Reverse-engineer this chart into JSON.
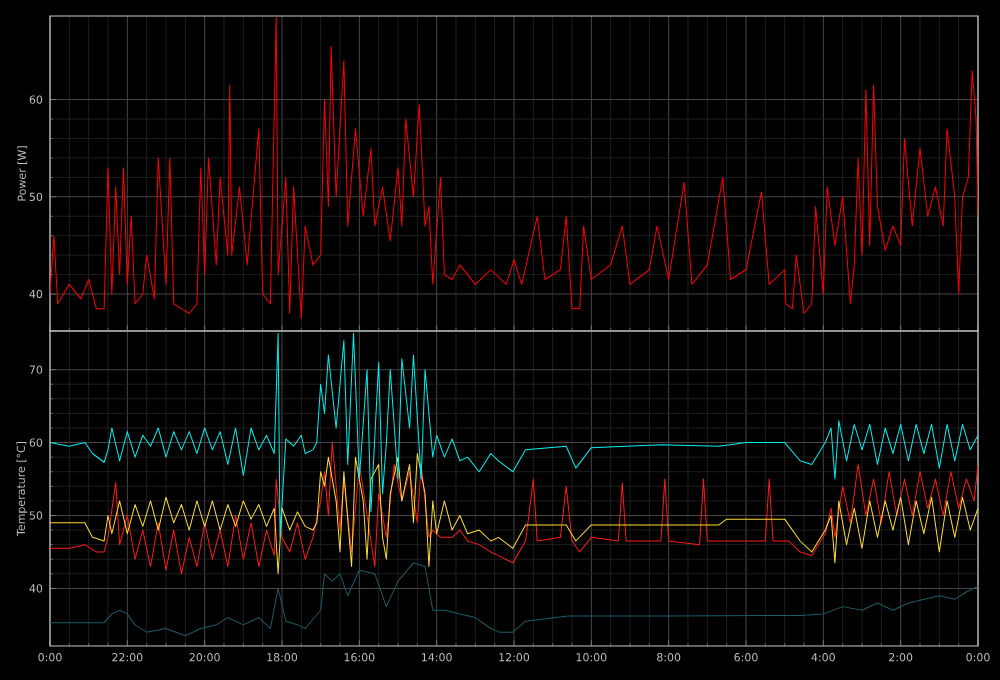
{
  "chart_data": [
    {
      "type": "line",
      "ylabel": "Power [W]",
      "xlim": [
        24,
        0
      ],
      "ylim": [
        36.2,
        68.6
      ],
      "yticks": [
        40,
        50,
        60
      ],
      "grid": true,
      "tick_labels": "y",
      "xticks": [
        {
          "value": 24,
          "label": null
        },
        {
          "value": 22,
          "label": null
        },
        {
          "value": 20,
          "label": null
        },
        {
          "value": 18,
          "label": null
        },
        {
          "value": 16,
          "label": null
        },
        {
          "value": 14,
          "label": null
        },
        {
          "value": 12,
          "label": null
        },
        {
          "value": 10,
          "label": null
        },
        {
          "value": 8,
          "label": null
        },
        {
          "value": 6,
          "label": null
        },
        {
          "value": 4,
          "label": null
        },
        {
          "value": 2,
          "label": null
        },
        {
          "value": 0,
          "label": null
        }
      ],
      "series": [
        {
          "color": "#ff0000",
          "x": [
            24.0,
            23.9,
            23.8,
            23.5,
            23.2,
            23.0,
            22.8,
            22.6,
            22.5,
            22.4,
            22.3,
            22.2,
            22.1,
            22.0,
            21.9,
            21.8,
            21.6,
            21.5,
            21.3,
            21.2,
            21.0,
            20.9,
            20.8,
            20.6,
            20.4,
            20.2,
            20.1,
            20.0,
            19.9,
            19.7,
            19.6,
            19.4,
            19.35,
            19.3,
            19.1,
            18.9,
            18.6,
            18.5,
            18.3,
            18.15,
            18.1,
            17.9,
            17.8,
            17.7,
            17.5,
            17.4,
            17.2,
            17.0,
            16.9,
            16.8,
            16.73,
            16.6,
            16.4,
            16.3,
            16.1,
            15.9,
            15.7,
            15.6,
            15.4,
            15.2,
            15.0,
            14.9,
            14.8,
            14.6,
            14.45,
            14.3,
            14.2,
            14.1,
            13.9,
            13.8,
            13.6,
            13.4,
            13.0,
            12.6,
            12.2,
            12.0,
            11.8,
            11.4,
            11.2,
            10.8,
            10.65,
            10.5,
            10.3,
            10.2,
            10.0,
            9.5,
            9.2,
            9.0,
            8.5,
            8.3,
            8.0,
            7.6,
            7.4,
            7.0,
            6.6,
            6.4,
            6.0,
            5.6,
            5.4,
            5.0,
            4.97,
            4.8,
            4.7,
            4.5,
            4.3,
            4.2,
            4.0,
            3.9,
            3.7,
            3.5,
            3.3,
            3.2,
            3.1,
            3.0,
            2.9,
            2.8,
            2.7,
            2.6,
            2.4,
            2.2,
            2.0,
            1.9,
            1.7,
            1.5,
            1.3,
            1.1,
            0.9,
            0.8,
            0.6,
            0.5,
            0.4,
            0.25,
            0.15,
            0.05,
            0.0
          ],
          "values": [
            40,
            46,
            39,
            41,
            39.5,
            41.5,
            38.5,
            38.5,
            53,
            40,
            51,
            42,
            53,
            41,
            48,
            39,
            40,
            44,
            39.5,
            54,
            41,
            54,
            39,
            38.5,
            38,
            39,
            53,
            42,
            54,
            43,
            52,
            44,
            61.5,
            44,
            51,
            43,
            57,
            40,
            39,
            68.5,
            42,
            52,
            38,
            51,
            37.5,
            47,
            43,
            44,
            60,
            49,
            65.5,
            50,
            64,
            47,
            57,
            48,
            55,
            47,
            51,
            45.5,
            53,
            47,
            58,
            50,
            59.5,
            47,
            49,
            41,
            52,
            42,
            41.5,
            43,
            41,
            42.5,
            41,
            43.5,
            41,
            48,
            41.5,
            42.5,
            48,
            38.5,
            38.5,
            47,
            41.5,
            43,
            47,
            41,
            42.5,
            47,
            41.5,
            51.5,
            41,
            43,
            52,
            41.5,
            42.5,
            50.5,
            41,
            42.5,
            39,
            38.5,
            44,
            38,
            39,
            49,
            40,
            51,
            45,
            50,
            39,
            43,
            54,
            44,
            61,
            45,
            61.5,
            49,
            44.5,
            47,
            45,
            56,
            47,
            55,
            48,
            51,
            47,
            57,
            50,
            40,
            50,
            52,
            63,
            58,
            48
          ]
        }
      ]
    },
    {
      "type": "line",
      "ylabel": "Temperature [°C]",
      "xlim": [
        24,
        0
      ],
      "ylim": [
        32.1,
        75.3
      ],
      "yticks": [
        40,
        50,
        60,
        70
      ],
      "grid": true,
      "xticks": [
        {
          "value": 24,
          "label": "0:00"
        },
        {
          "value": 22,
          "label": "22:00"
        },
        {
          "value": 20,
          "label": "20:00"
        },
        {
          "value": 18,
          "label": "18:00"
        },
        {
          "value": 16,
          "label": "16:00"
        },
        {
          "value": 14,
          "label": "14:00"
        },
        {
          "value": 12,
          "label": "12:00"
        },
        {
          "value": 10,
          "label": "10:00"
        },
        {
          "value": 8,
          "label": "8:00"
        },
        {
          "value": 6,
          "label": "6:00"
        },
        {
          "value": 4,
          "label": "4:00"
        },
        {
          "value": 2,
          "label": "2:00"
        },
        {
          "value": 0,
          "label": "0:00"
        }
      ],
      "series": [
        {
          "color": "#ff1a1a",
          "x": [
            24.0,
            23.5,
            23.1,
            22.8,
            22.6,
            22.5,
            22.3,
            22.2,
            22.0,
            21.8,
            21.6,
            21.4,
            21.2,
            21.0,
            20.8,
            20.6,
            20.4,
            20.2,
            20.0,
            19.8,
            19.6,
            19.4,
            19.2,
            19.0,
            18.8,
            18.6,
            18.4,
            18.2,
            18.15,
            18.0,
            17.8,
            17.6,
            17.4,
            17.2,
            17.0,
            16.9,
            16.8,
            16.7,
            16.5,
            16.4,
            16.2,
            16.0,
            15.8,
            15.6,
            15.5,
            15.3,
            15.1,
            14.9,
            14.7,
            14.5,
            14.4,
            14.2,
            14.1,
            13.9,
            13.6,
            13.4,
            13.2,
            12.9,
            12.6,
            12.4,
            12.03,
            11.7,
            11.5,
            11.4,
            10.8,
            10.65,
            10.5,
            10.3,
            10.0,
            9.3,
            9.2,
            9.1,
            8.2,
            8.1,
            8.0,
            7.2,
            7.1,
            7.0,
            5.5,
            5.4,
            5.3,
            4.9,
            4.6,
            4.3,
            3.95,
            3.8,
            3.7,
            3.5,
            3.3,
            3.1,
            2.9,
            2.7,
            2.5,
            2.3,
            2.1,
            1.9,
            1.7,
            1.5,
            1.3,
            1.1,
            0.9,
            0.7,
            0.5,
            0.3,
            0.1,
            0.0
          ],
          "values": [
            45.5,
            45.5,
            46,
            45,
            45,
            47,
            54.5,
            46,
            50,
            44,
            48,
            43,
            49,
            42.5,
            48,
            42,
            47,
            43,
            49,
            44,
            48,
            43,
            50,
            44,
            49,
            43,
            48,
            44.5,
            55,
            47,
            45,
            49,
            44,
            47,
            52,
            56,
            50,
            60,
            48,
            55,
            45,
            57,
            50,
            43,
            53,
            47,
            57,
            52,
            56,
            49,
            57,
            47,
            48,
            47,
            47,
            48,
            46.5,
            46,
            45,
            44.5,
            43.5,
            46.5,
            55,
            46.5,
            47,
            54,
            46.5,
            45,
            47,
            46.5,
            54.5,
            46.5,
            46.5,
            55,
            46.5,
            46,
            55,
            46.5,
            46.5,
            55,
            46.5,
            46.5,
            45,
            44.5,
            47.5,
            51,
            47,
            54,
            49,
            57,
            50,
            55,
            49,
            56,
            50,
            55,
            50,
            56,
            51,
            55,
            50,
            56,
            51,
            55,
            52,
            57
          ]
        },
        {
          "color": "#ffdd33",
          "x": [
            24.0,
            23.1,
            22.9,
            22.6,
            22.5,
            22.4,
            22.2,
            22.0,
            21.8,
            21.6,
            21.4,
            21.2,
            21.0,
            20.8,
            20.6,
            20.4,
            20.2,
            20.0,
            19.8,
            19.6,
            19.4,
            19.2,
            19.0,
            18.8,
            18.6,
            18.4,
            18.2,
            18.1,
            18.0,
            17.8,
            17.6,
            17.4,
            17.2,
            17.1,
            17.0,
            16.9,
            16.8,
            16.6,
            16.5,
            16.4,
            16.2,
            16.1,
            15.9,
            15.8,
            15.7,
            15.5,
            15.4,
            15.3,
            15.2,
            15.0,
            14.9,
            14.7,
            14.6,
            14.5,
            14.3,
            14.2,
            14.1,
            14.0,
            13.8,
            13.6,
            13.4,
            13.2,
            12.9,
            12.6,
            12.4,
            12.03,
            11.7,
            10.65,
            10.4,
            10.0,
            6.7,
            6.5,
            5.0,
            4.6,
            4.3,
            3.95,
            3.8,
            3.7,
            3.6,
            3.4,
            3.2,
            3.0,
            2.8,
            2.6,
            2.4,
            2.2,
            2.0,
            1.8,
            1.6,
            1.4,
            1.2,
            1.0,
            0.8,
            0.6,
            0.4,
            0.2,
            0.0
          ],
          "values": [
            49,
            49,
            47,
            46.5,
            50,
            47.5,
            52,
            47.5,
            51.5,
            48.5,
            52,
            48,
            52.5,
            49,
            51.5,
            48,
            52,
            48.5,
            52,
            48,
            51.5,
            48.5,
            52,
            49.5,
            51.5,
            48.5,
            51,
            42,
            51,
            48,
            50.5,
            48.5,
            48,
            49,
            56,
            54,
            58,
            52,
            45,
            56,
            43,
            58,
            52,
            44,
            55,
            57,
            47,
            44,
            53,
            58,
            52,
            57,
            49,
            58.5,
            53,
            43,
            52,
            47.5,
            52,
            48,
            50,
            47.5,
            48,
            46.5,
            47,
            45.5,
            48.7,
            48.7,
            46.5,
            48.7,
            48.7,
            49.5,
            49.5,
            46.5,
            45,
            48,
            50,
            43.5,
            52,
            46,
            51,
            45.5,
            52,
            47,
            52,
            48,
            52.5,
            46,
            52,
            47.5,
            52.5,
            45,
            52,
            47,
            52.5,
            48,
            51
          ]
        },
        {
          "color": "#00f0f0",
          "x": [
            24.0,
            23.5,
            23.1,
            22.9,
            22.6,
            22.5,
            22.4,
            22.2,
            22.0,
            21.8,
            21.6,
            21.4,
            21.2,
            21.0,
            20.8,
            20.6,
            20.4,
            20.2,
            20.0,
            19.8,
            19.6,
            19.4,
            19.2,
            19.0,
            18.8,
            18.6,
            18.4,
            18.2,
            18.1,
            18.05,
            17.9,
            17.7,
            17.5,
            17.4,
            17.2,
            17.1,
            17.0,
            16.9,
            16.8,
            16.6,
            16.4,
            16.3,
            16.15,
            16.0,
            15.8,
            15.7,
            15.5,
            15.4,
            15.3,
            15.2,
            15.0,
            14.9,
            14.7,
            14.6,
            14.4,
            14.3,
            14.1,
            14.0,
            13.8,
            13.6,
            13.4,
            13.2,
            12.9,
            12.6,
            12.4,
            12.03,
            11.7,
            10.65,
            10.4,
            10.0,
            8.2,
            6.7,
            6.0,
            5.0,
            4.6,
            4.3,
            3.95,
            3.8,
            3.7,
            3.6,
            3.4,
            3.2,
            3.0,
            2.8,
            2.6,
            2.4,
            2.2,
            2.0,
            1.8,
            1.6,
            1.4,
            1.2,
            1.0,
            0.8,
            0.6,
            0.4,
            0.2,
            0.0
          ],
          "values": [
            60,
            59.5,
            60,
            58.5,
            57.3,
            59,
            62,
            57.5,
            61.5,
            58,
            61,
            59.5,
            62,
            58,
            61.5,
            59,
            61.5,
            58.5,
            62,
            59,
            61.5,
            57,
            62,
            55.5,
            62,
            59,
            61,
            58.5,
            75,
            47,
            60.5,
            59.5,
            61,
            58.5,
            59,
            60,
            68,
            64,
            72,
            62,
            74,
            57,
            75,
            55,
            70,
            50.5,
            71,
            53,
            60,
            70,
            55,
            71.5,
            62,
            72,
            55,
            70,
            58,
            61,
            58,
            60.5,
            57.5,
            58,
            56,
            58.5,
            57.5,
            56,
            59,
            59.5,
            56.5,
            59.3,
            59.7,
            59.5,
            60,
            60,
            57.5,
            57,
            60,
            62,
            55,
            63,
            57.5,
            62.5,
            59,
            62.5,
            57,
            62,
            58.5,
            62.5,
            57.5,
            62.5,
            58.5,
            62.5,
            56.5,
            62.5,
            57.5,
            62.5,
            59,
            61
          ]
        },
        {
          "color": "#1b5c66",
          "x": [
            24.0,
            22.6,
            22.4,
            22.2,
            22.0,
            21.8,
            21.5,
            21.0,
            20.5,
            20.1,
            19.7,
            19.4,
            19.0,
            18.6,
            18.3,
            18.1,
            17.9,
            17.6,
            17.4,
            17.0,
            16.9,
            16.7,
            16.5,
            16.3,
            16.0,
            15.6,
            15.3,
            15.0,
            14.6,
            14.3,
            14.1,
            13.8,
            13.4,
            13.0,
            12.6,
            12.37,
            12.03,
            11.7,
            10.6,
            8.0,
            5.0,
            4.6,
            4.0,
            3.5,
            3.0,
            2.6,
            2.2,
            1.8,
            1.4,
            1.0,
            0.6,
            0.3,
            0.0
          ],
          "values": [
            35.3,
            35.3,
            36.5,
            37,
            36.5,
            35,
            34,
            34.5,
            33.5,
            34.5,
            35,
            36,
            35,
            36,
            34.5,
            40,
            35.5,
            35,
            34.5,
            37,
            42,
            41,
            42,
            39,
            42.5,
            42,
            37.5,
            41,
            43.5,
            43,
            37,
            37,
            36.5,
            36,
            34.5,
            34,
            34,
            35.5,
            36.2,
            36.2,
            36.3,
            36.3,
            36.5,
            37.5,
            37,
            38,
            37,
            38,
            38.5,
            39,
            38.5,
            39.5,
            40.3
          ]
        }
      ]
    }
  ]
}
